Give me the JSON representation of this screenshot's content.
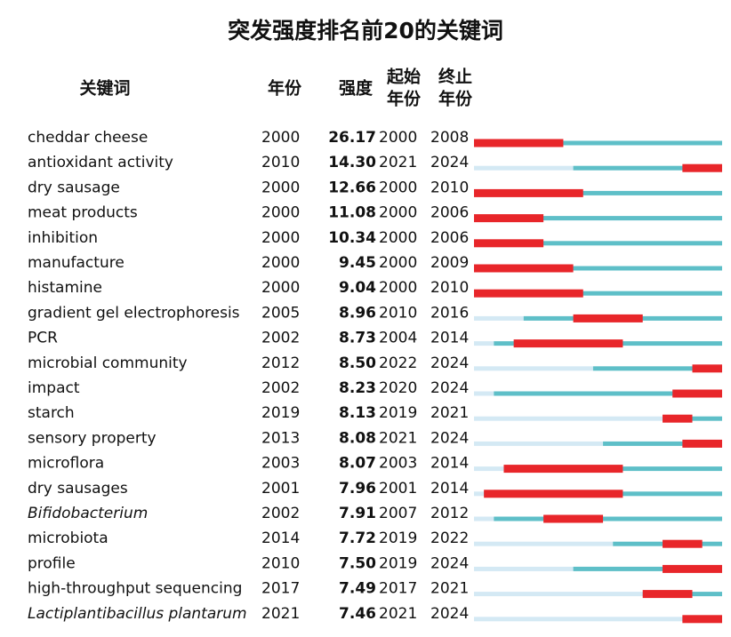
{
  "table": {
    "title": "突发强度排名前20的关键词",
    "headers": [
      "关键词",
      "年份",
      "强度",
      "起始",
      "年份",
      "终止",
      "年份"
    ],
    "colors": {
      "before": "#d4e9f4",
      "active": "#5ebfc8",
      "burst": "#e8262a"
    },
    "rows": [
      {
        "keyword": "cheddar cheese",
        "year": 2000,
        "strength": "26.17",
        "begin": 2000,
        "end": 2008
      },
      {
        "keyword": "antioxidant activity",
        "year": 2010,
        "strength": "14.30",
        "begin": 2021,
        "end": 2024
      },
      {
        "keyword": "dry sausage",
        "year": 2000,
        "strength": "12.66",
        "begin": 2000,
        "end": 2010
      },
      {
        "keyword": "meat products",
        "year": 2000,
        "strength": "11.08",
        "begin": 2000,
        "end": 2006
      },
      {
        "keyword": "inhibition",
        "year": 2000,
        "strength": "10.34",
        "begin": 2000,
        "end": 2006
      },
      {
        "keyword": "manufacture",
        "year": 2000,
        "strength": "9.45",
        "begin": 2000,
        "end": 2009
      },
      {
        "keyword": "histamine",
        "year": 2000,
        "strength": "9.04",
        "begin": 2000,
        "end": 2010
      },
      {
        "keyword": "gradient gel electrophoresis",
        "year": 2005,
        "strength": "8.96",
        "begin": 2010,
        "end": 2016
      },
      {
        "keyword": "PCR",
        "year": 2002,
        "strength": "8.73",
        "begin": 2004,
        "end": 2014
      },
      {
        "keyword": "microbial community",
        "year": 2012,
        "strength": "8.50",
        "begin": 2022,
        "end": 2024
      },
      {
        "keyword": "impact",
        "year": 2002,
        "strength": "8.23",
        "begin": 2020,
        "end": 2024
      },
      {
        "keyword": "starch",
        "year": 2019,
        "strength": "8.13",
        "begin": 2019,
        "end": 2021
      },
      {
        "keyword": "sensory property",
        "year": 2013,
        "strength": "8.08",
        "begin": 2021,
        "end": 2024
      },
      {
        "keyword": "microflora",
        "year": 2003,
        "strength": "8.07",
        "begin": 2003,
        "end": 2014
      },
      {
        "keyword": "dry sausages",
        "year": 2001,
        "strength": "7.96",
        "begin": 2001,
        "end": 2014
      },
      {
        "keyword": "Bifidobacterium",
        "italic": true,
        "year": 2002,
        "strength": "7.91",
        "begin": 2007,
        "end": 2012
      },
      {
        "keyword": "microbiota",
        "year": 2014,
        "strength": "7.72",
        "begin": 2019,
        "end": 2022
      },
      {
        "keyword": "profile",
        "year": 2010,
        "strength": "7.50",
        "begin": 2019,
        "end": 2024
      },
      {
        "keyword": "high-throughput sequencing",
        "year": 2017,
        "strength": "7.49",
        "begin": 2017,
        "end": 2021
      },
      {
        "keyword": "Lactiplantibacillus plantarum",
        "italic": true,
        "year": 2021,
        "strength": "7.46",
        "begin": 2021,
        "end": 2024
      }
    ]
  }
}
